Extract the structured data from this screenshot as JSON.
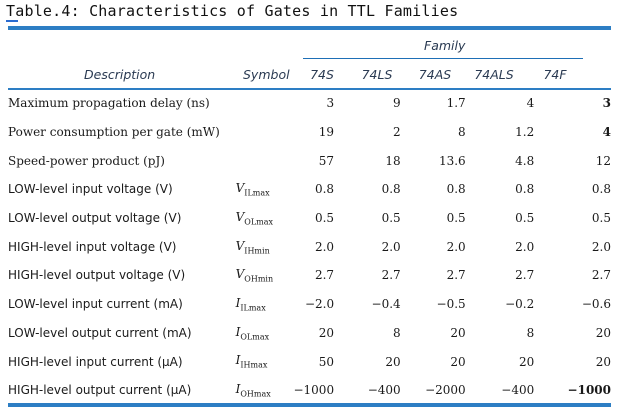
{
  "caption": "Table.4: Characteristics of Gates in TTL Families",
  "header": {
    "family": "Family",
    "description": "Description",
    "symbol": "Symbol",
    "columns": [
      "74S",
      "74LS",
      "74AS",
      "74ALS",
      "74F"
    ]
  },
  "rows": [
    {
      "description": "Maximum propagation delay (ns)",
      "symbol_main": "",
      "symbol_sub": "",
      "values": [
        "3",
        "9",
        "1.7",
        "4",
        "3"
      ]
    },
    {
      "description": "Power consumption per gate (mW)",
      "symbol_main": "",
      "symbol_sub": "",
      "values": [
        "19",
        "2",
        "8",
        "1.2",
        "4"
      ]
    },
    {
      "description": "Speed-power product (pJ)",
      "symbol_main": "",
      "symbol_sub": "",
      "values": [
        "57",
        "18",
        "13.6",
        "4.8",
        "12"
      ]
    },
    {
      "description": "LOW-level input voltage (V)",
      "symbol_main": "V",
      "symbol_sub": "ILmax",
      "values": [
        "0.8",
        "0.8",
        "0.8",
        "0.8",
        "0.8"
      ]
    },
    {
      "description": "LOW-level output voltage (V)",
      "symbol_main": "V",
      "symbol_sub": "OLmax",
      "values": [
        "0.5",
        "0.5",
        "0.5",
        "0.5",
        "0.5"
      ]
    },
    {
      "description": "HIGH-level input voltage (V)",
      "symbol_main": "V",
      "symbol_sub": "IHmin",
      "values": [
        "2.0",
        "2.0",
        "2.0",
        "2.0",
        "2.0"
      ]
    },
    {
      "description": "HIGH-level output voltage (V)",
      "symbol_main": "V",
      "symbol_sub": "OHmin",
      "values": [
        "2.7",
        "2.7",
        "2.7",
        "2.7",
        "2.7"
      ]
    },
    {
      "description": "LOW-level input current (mA)",
      "symbol_main": "I",
      "symbol_sub": "ILmax",
      "values": [
        "−2.0",
        "−0.4",
        "−0.5",
        "−0.2",
        "−0.6"
      ]
    },
    {
      "description": "LOW-level output current (mA)",
      "symbol_main": "I",
      "symbol_sub": "OLmax",
      "values": [
        "20",
        "8",
        "20",
        "8",
        "20"
      ]
    },
    {
      "description": "HIGH-level input current (μA)",
      "symbol_main": "I",
      "symbol_sub": "IHmax",
      "values": [
        "50",
        "20",
        "20",
        "20",
        "20"
      ]
    },
    {
      "description": "HIGH-level output current (μA)",
      "symbol_main": "I",
      "symbol_sub": "OHmax",
      "values": [
        "−1000",
        "−400",
        "−2000",
        "−400",
        "−1000"
      ]
    }
  ],
  "colors": {
    "rule": "#2d7ec4",
    "header_text": "#2a3a52"
  }
}
